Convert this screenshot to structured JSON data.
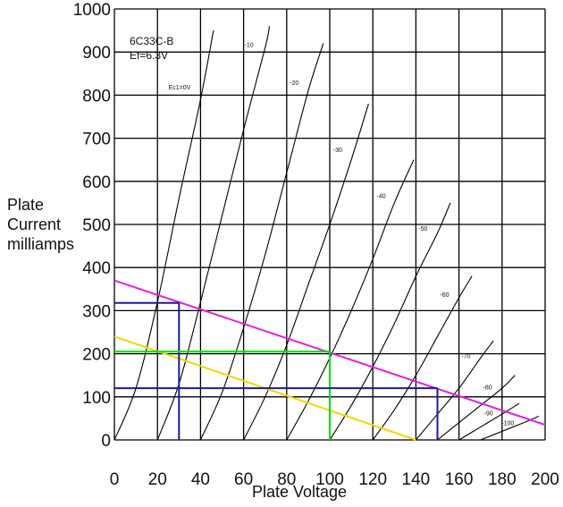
{
  "chart_data": {
    "type": "line",
    "xlabel": "Plate Voltage",
    "ylabel": [
      "Plate",
      "Current",
      "milliamps"
    ],
    "xlim": [
      0,
      200
    ],
    "ylim": [
      0,
      1000
    ],
    "grid": true,
    "x_ticks": [
      0,
      20,
      40,
      60,
      80,
      100,
      120,
      140,
      160,
      180,
      200
    ],
    "y_ticks": [
      0,
      100,
      200,
      300,
      400,
      500,
      600,
      700,
      800,
      900,
      1000
    ],
    "annotation": [
      "6C33C-B",
      "Ef=6.3V"
    ],
    "series": [
      {
        "name": "Ec1=0V",
        "color": "#000000",
        "points": [
          [
            0,
            0
          ],
          [
            10,
            120
          ],
          [
            20,
            320
          ],
          [
            30,
            560
          ],
          [
            40,
            790
          ],
          [
            46,
            950
          ]
        ]
      },
      {
        "name": "-10",
        "color": "#000000",
        "points": [
          [
            20,
            0
          ],
          [
            30,
            130
          ],
          [
            40,
            320
          ],
          [
            50,
            520
          ],
          [
            60,
            720
          ],
          [
            70,
            910
          ],
          [
            72,
            960
          ]
        ]
      },
      {
        "name": "-20",
        "color": "#000000",
        "points": [
          [
            40,
            0
          ],
          [
            50,
            110
          ],
          [
            60,
            260
          ],
          [
            70,
            430
          ],
          [
            80,
            620
          ],
          [
            90,
            810
          ],
          [
            97,
            920
          ]
        ]
      },
      {
        "name": "-30",
        "color": "#000000",
        "points": [
          [
            60,
            0
          ],
          [
            70,
            100
          ],
          [
            80,
            220
          ],
          [
            90,
            360
          ],
          [
            100,
            500
          ],
          [
            110,
            650
          ],
          [
            118,
            780
          ]
        ]
      },
      {
        "name": "-40",
        "color": "#000000",
        "points": [
          [
            80,
            0
          ],
          [
            90,
            90
          ],
          [
            100,
            190
          ],
          [
            110,
            300
          ],
          [
            120,
            420
          ],
          [
            130,
            550
          ],
          [
            139,
            650
          ]
        ]
      },
      {
        "name": "-50",
        "color": "#000000",
        "points": [
          [
            100,
            0
          ],
          [
            110,
            80
          ],
          [
            120,
            170
          ],
          [
            130,
            270
          ],
          [
            140,
            380
          ],
          [
            150,
            480
          ],
          [
            156,
            550
          ]
        ]
      },
      {
        "name": "-60",
        "color": "#000000",
        "points": [
          [
            120,
            0
          ],
          [
            130,
            70
          ],
          [
            140,
            150
          ],
          [
            150,
            240
          ],
          [
            160,
            330
          ],
          [
            166,
            380
          ]
        ]
      },
      {
        "name": "-70",
        "color": "#000000",
        "points": [
          [
            140,
            0
          ],
          [
            150,
            60
          ],
          [
            160,
            120
          ],
          [
            170,
            190
          ],
          [
            176,
            230
          ]
        ]
      },
      {
        "name": "-80",
        "color": "#000000",
        "points": [
          [
            150,
            0
          ],
          [
            160,
            40
          ],
          [
            170,
            80
          ],
          [
            180,
            120
          ],
          [
            186,
            150
          ]
        ]
      },
      {
        "name": "-90",
        "color": "#000000",
        "points": [
          [
            160,
            0
          ],
          [
            170,
            30
          ],
          [
            180,
            60
          ],
          [
            188,
            85
          ]
        ]
      },
      {
        "name": "-100",
        "color": "#000000",
        "points": [
          [
            170,
            0
          ],
          [
            180,
            20
          ],
          [
            190,
            40
          ],
          [
            197,
            55
          ]
        ]
      }
    ],
    "load_lines": [
      {
        "color": "#e020e0",
        "points": [
          [
            0,
            370
          ],
          [
            200,
            35
          ]
        ]
      },
      {
        "color": "#f0d800",
        "points": [
          [
            0,
            240
          ],
          [
            140,
            0
          ]
        ]
      }
    ],
    "operating_points": [
      {
        "color": "#1a1aa0",
        "x": 30,
        "y": 318
      },
      {
        "color": "#00e000",
        "x": 100,
        "y": 205
      },
      {
        "color": "#1a1aa0",
        "x": 150,
        "y": 120
      }
    ]
  }
}
